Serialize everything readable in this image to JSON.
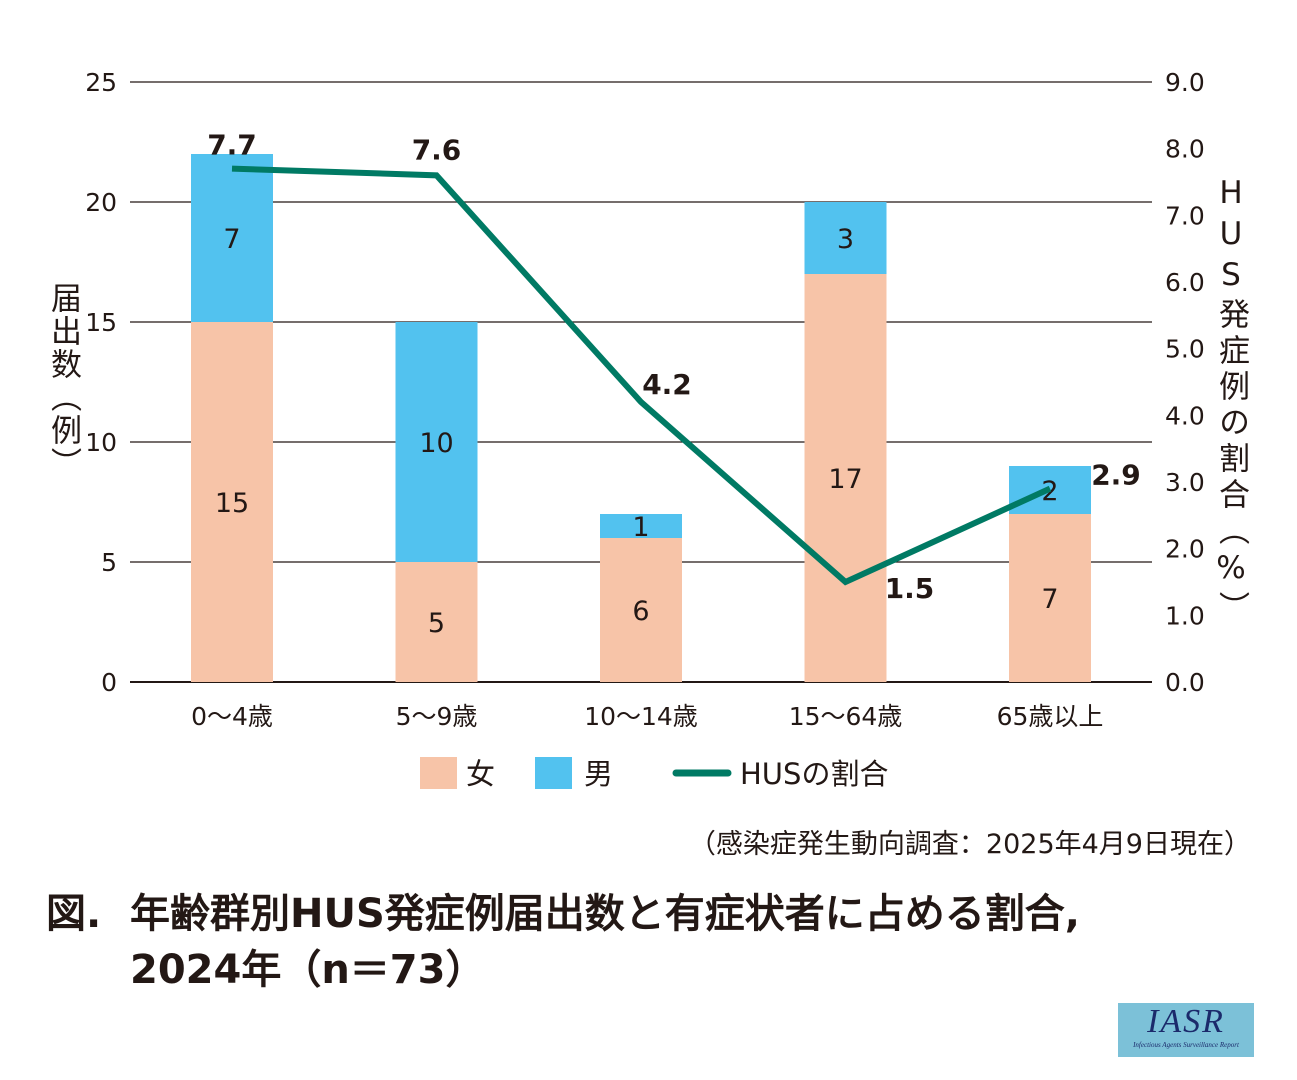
{
  "chart_data": {
    "type": "bar+line",
    "categories": [
      "0〜4歳",
      "5〜9歳",
      "10〜14歳",
      "15〜64歳",
      "65歳以上"
    ],
    "series": [
      {
        "name": "女",
        "type": "stacked-bar",
        "axis": "left",
        "color": "#f7c4a8",
        "values": [
          15,
          5,
          6,
          17,
          7
        ]
      },
      {
        "name": "男",
        "type": "stacked-bar",
        "axis": "left",
        "color": "#52c2ef",
        "values": [
          7,
          10,
          1,
          3,
          2
        ]
      },
      {
        "name": "HUSの割合",
        "type": "line",
        "axis": "right",
        "color": "#007a64",
        "values": [
          7.7,
          7.6,
          4.2,
          1.5,
          2.9
        ],
        "labels": [
          "7.7",
          "7.6",
          "4.2",
          "1.5",
          "2.9"
        ]
      }
    ],
    "ylabel": "届出数（例）",
    "y2label": "HUS発症例の割合（%）",
    "ylim": [
      0,
      25
    ],
    "y2lim": [
      0,
      9
    ],
    "yticks": [
      "0",
      "5",
      "10",
      "15",
      "20",
      "25"
    ],
    "y2ticks": [
      "0.0",
      "1.0",
      "2.0",
      "3.0",
      "4.0",
      "5.0",
      "6.0",
      "7.0",
      "8.0",
      "9.0"
    ],
    "grid": true,
    "legend_position": "bottom"
  },
  "source": "（感染症発生動向調査：2025年4月9日現在）",
  "title": {
    "number": "図.",
    "line1": "年齢群別HUS発症例届出数と有症状者に占める割合,",
    "line2": "2024年（n＝73）"
  },
  "logo": {
    "text": "IASR",
    "subtitle": "Infectious Agents Surveillance Report"
  }
}
